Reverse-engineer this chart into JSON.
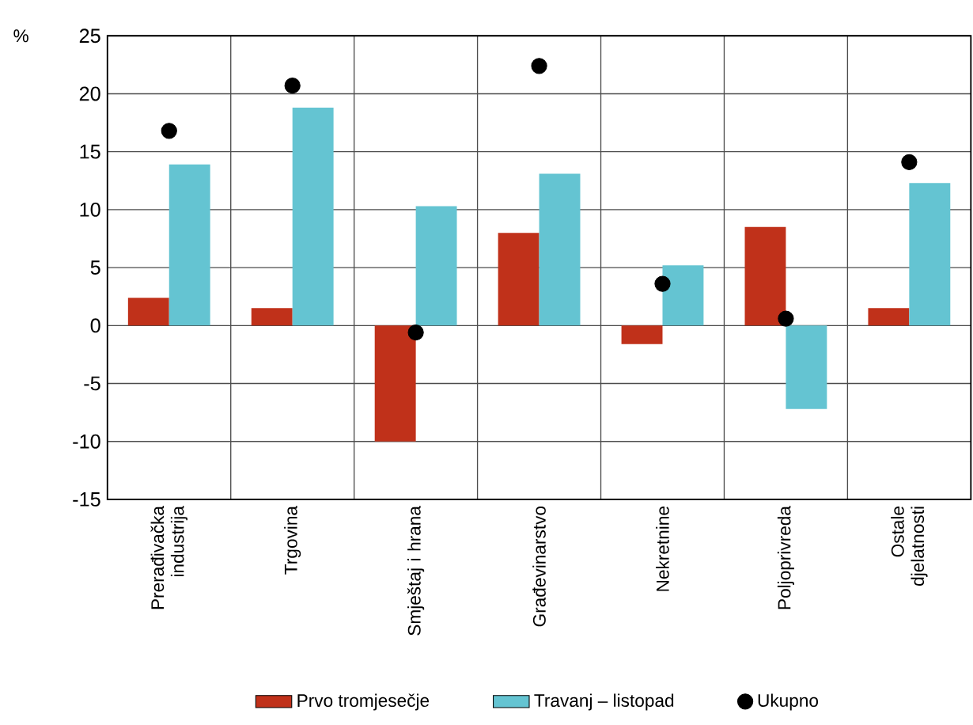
{
  "chart_data": {
    "type": "bar",
    "ylabel": "%",
    "categories": [
      "Prerađivačka industrija",
      "Trgovina",
      "Smještaj i hrana",
      "Građevinarstvo",
      "Nekretnine",
      "Poljoprivreda",
      "Ostale djelatnosti"
    ],
    "series": [
      {
        "name": "Prvo tromjesečje",
        "color": "#c0311a",
        "values": [
          2.4,
          1.5,
          -10,
          8,
          -1.6,
          8.5,
          1.5
        ]
      },
      {
        "name": "Travanj – listopad",
        "color": "#64c4d2",
        "values": [
          13.9,
          18.8,
          10.3,
          13.1,
          5.2,
          -7.2,
          12.3
        ]
      },
      {
        "name": "Ukupno",
        "type": "scatter",
        "color": "#000000",
        "values": [
          16.8,
          20.7,
          -0.6,
          22.4,
          3.6,
          0.6,
          14.1
        ]
      }
    ],
    "ylim": [
      -15,
      25
    ],
    "yticks": [
      -15,
      -10,
      -5,
      0,
      5,
      10,
      15,
      20,
      25
    ],
    "grid": true,
    "legend": "bottom",
    "marker": "circle"
  }
}
